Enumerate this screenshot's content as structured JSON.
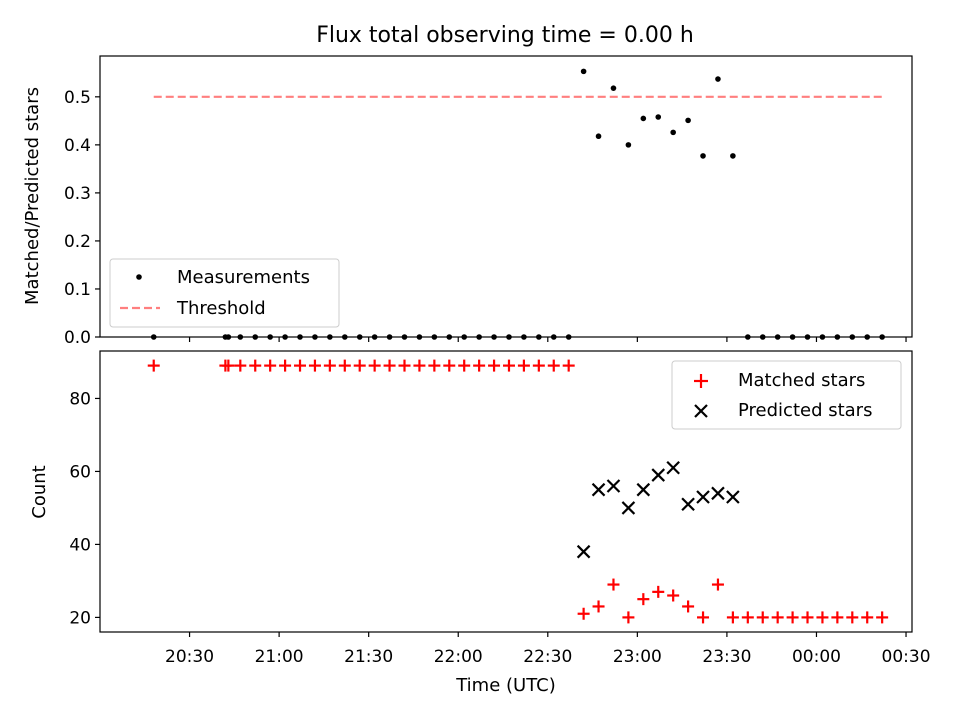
{
  "title": "Flux total observing time = 0.00 h",
  "colors": {
    "measurements": "#000000",
    "threshold": "#ff7f7f",
    "matched": "#ff0000",
    "predicted": "#000000",
    "axes": "#000000"
  },
  "chart_data": [
    {
      "type": "scatter",
      "panel": "top",
      "title": "Flux total observing time = 0.00 h",
      "xlabel": "",
      "ylabel": "Matched/Predicted stars",
      "ylim": [
        0.0,
        0.585
      ],
      "yticks": [
        0.0,
        0.1,
        0.2,
        0.3,
        0.4,
        0.5
      ],
      "ytick_labels": [
        "0.0",
        "0.1",
        "0.2",
        "0.3",
        "0.4",
        "0.5"
      ],
      "xlim_minutes": [
        1200,
        1472
      ],
      "xticks_minutes": [
        1230,
        1260,
        1290,
        1320,
        1350,
        1380,
        1410,
        1440,
        1470
      ],
      "legend": {
        "placement": "lower-left",
        "entries": [
          "Measurements",
          "Threshold"
        ]
      },
      "series": [
        {
          "name": "Measurements",
          "marker": "dot",
          "points": [
            [
              "20:18",
              0.0
            ],
            [
              "20:42",
              0.0
            ],
            [
              "20:43",
              0.0
            ],
            [
              "20:47",
              0.0
            ],
            [
              "20:52",
              0.0
            ],
            [
              "20:57",
              0.0
            ],
            [
              "21:02",
              0.0
            ],
            [
              "21:07",
              0.0
            ],
            [
              "21:12",
              0.0
            ],
            [
              "21:17",
              0.0
            ],
            [
              "21:22",
              0.0
            ],
            [
              "21:27",
              0.0
            ],
            [
              "21:32",
              0.0
            ],
            [
              "21:37",
              0.0
            ],
            [
              "21:42",
              0.0
            ],
            [
              "21:47",
              0.0
            ],
            [
              "21:52",
              0.0
            ],
            [
              "21:57",
              0.0
            ],
            [
              "22:02",
              0.0
            ],
            [
              "22:07",
              0.0
            ],
            [
              "22:12",
              0.0
            ],
            [
              "22:17",
              0.0
            ],
            [
              "22:22",
              0.0
            ],
            [
              "22:27",
              0.0
            ],
            [
              "22:32",
              0.0
            ],
            [
              "22:37",
              0.0
            ],
            [
              "22:42",
              0.553
            ],
            [
              "22:47",
              0.418
            ],
            [
              "22:52",
              0.518
            ],
            [
              "22:57",
              0.4
            ],
            [
              "23:02",
              0.455
            ],
            [
              "23:07",
              0.458
            ],
            [
              "23:12",
              0.426
            ],
            [
              "23:17",
              0.451
            ],
            [
              "23:22",
              0.377
            ],
            [
              "23:27",
              0.537
            ],
            [
              "23:32",
              0.377
            ],
            [
              "23:37",
              0.0
            ],
            [
              "23:42",
              0.0
            ],
            [
              "23:47",
              0.0
            ],
            [
              "23:52",
              0.0
            ],
            [
              "23:57",
              0.0
            ],
            [
              "00:02",
              0.0
            ],
            [
              "00:07",
              0.0
            ],
            [
              "00:12",
              0.0
            ],
            [
              "00:17",
              0.0
            ],
            [
              "00:22",
              0.0
            ]
          ]
        },
        {
          "name": "Threshold",
          "line": "dashed",
          "points": [
            [
              "20:18",
              0.5
            ],
            [
              "00:22",
              0.5
            ]
          ]
        }
      ]
    },
    {
      "type": "scatter",
      "panel": "bottom",
      "xlabel": "Time (UTC)",
      "ylabel": "Count",
      "ylim": [
        16,
        93
      ],
      "yticks": [
        20,
        40,
        60,
        80
      ],
      "ytick_labels": [
        "20",
        "40",
        "60",
        "80"
      ],
      "xlim_minutes": [
        1200,
        1472
      ],
      "xticks_minutes": [
        1230,
        1260,
        1290,
        1320,
        1350,
        1380,
        1410,
        1440,
        1470
      ],
      "xtick_labels": [
        "20:30",
        "21:00",
        "21:30",
        "22:00",
        "22:30",
        "23:00",
        "23:30",
        "00:00",
        "00:30"
      ],
      "legend": {
        "placement": "upper-right",
        "entries": [
          "Matched stars",
          "Predicted stars"
        ]
      },
      "series": [
        {
          "name": "Matched stars",
          "marker": "plus",
          "points": [
            [
              "20:18",
              89
            ],
            [
              "20:42",
              89
            ],
            [
              "20:43",
              89
            ],
            [
              "20:47",
              89
            ],
            [
              "20:52",
              89
            ],
            [
              "20:57",
              89
            ],
            [
              "21:02",
              89
            ],
            [
              "21:07",
              89
            ],
            [
              "21:12",
              89
            ],
            [
              "21:17",
              89
            ],
            [
              "21:22",
              89
            ],
            [
              "21:27",
              89
            ],
            [
              "21:32",
              89
            ],
            [
              "21:37",
              89
            ],
            [
              "21:42",
              89
            ],
            [
              "21:47",
              89
            ],
            [
              "21:52",
              89
            ],
            [
              "21:57",
              89
            ],
            [
              "22:02",
              89
            ],
            [
              "22:07",
              89
            ],
            [
              "22:12",
              89
            ],
            [
              "22:17",
              89
            ],
            [
              "22:22",
              89
            ],
            [
              "22:27",
              89
            ],
            [
              "22:32",
              89
            ],
            [
              "22:37",
              89
            ],
            [
              "22:42",
              21
            ],
            [
              "22:47",
              23
            ],
            [
              "22:52",
              29
            ],
            [
              "22:57",
              20
            ],
            [
              "23:02",
              25
            ],
            [
              "23:07",
              27
            ],
            [
              "23:12",
              26
            ],
            [
              "23:17",
              23
            ],
            [
              "23:22",
              20
            ],
            [
              "23:27",
              29
            ],
            [
              "23:32",
              20
            ],
            [
              "23:37",
              20
            ],
            [
              "23:42",
              20
            ],
            [
              "23:47",
              20
            ],
            [
              "23:52",
              20
            ],
            [
              "23:57",
              20
            ],
            [
              "00:02",
              20
            ],
            [
              "00:07",
              20
            ],
            [
              "00:12",
              20
            ],
            [
              "00:17",
              20
            ],
            [
              "00:22",
              20
            ]
          ]
        },
        {
          "name": "Predicted stars",
          "marker": "x",
          "points": [
            [
              "22:42",
              38
            ],
            [
              "22:47",
              55
            ],
            [
              "22:52",
              56
            ],
            [
              "22:57",
              50
            ],
            [
              "23:02",
              55
            ],
            [
              "23:07",
              59
            ],
            [
              "23:12",
              61
            ],
            [
              "23:17",
              51
            ],
            [
              "23:22",
              53
            ],
            [
              "23:27",
              54
            ],
            [
              "23:32",
              53
            ]
          ]
        }
      ]
    }
  ]
}
